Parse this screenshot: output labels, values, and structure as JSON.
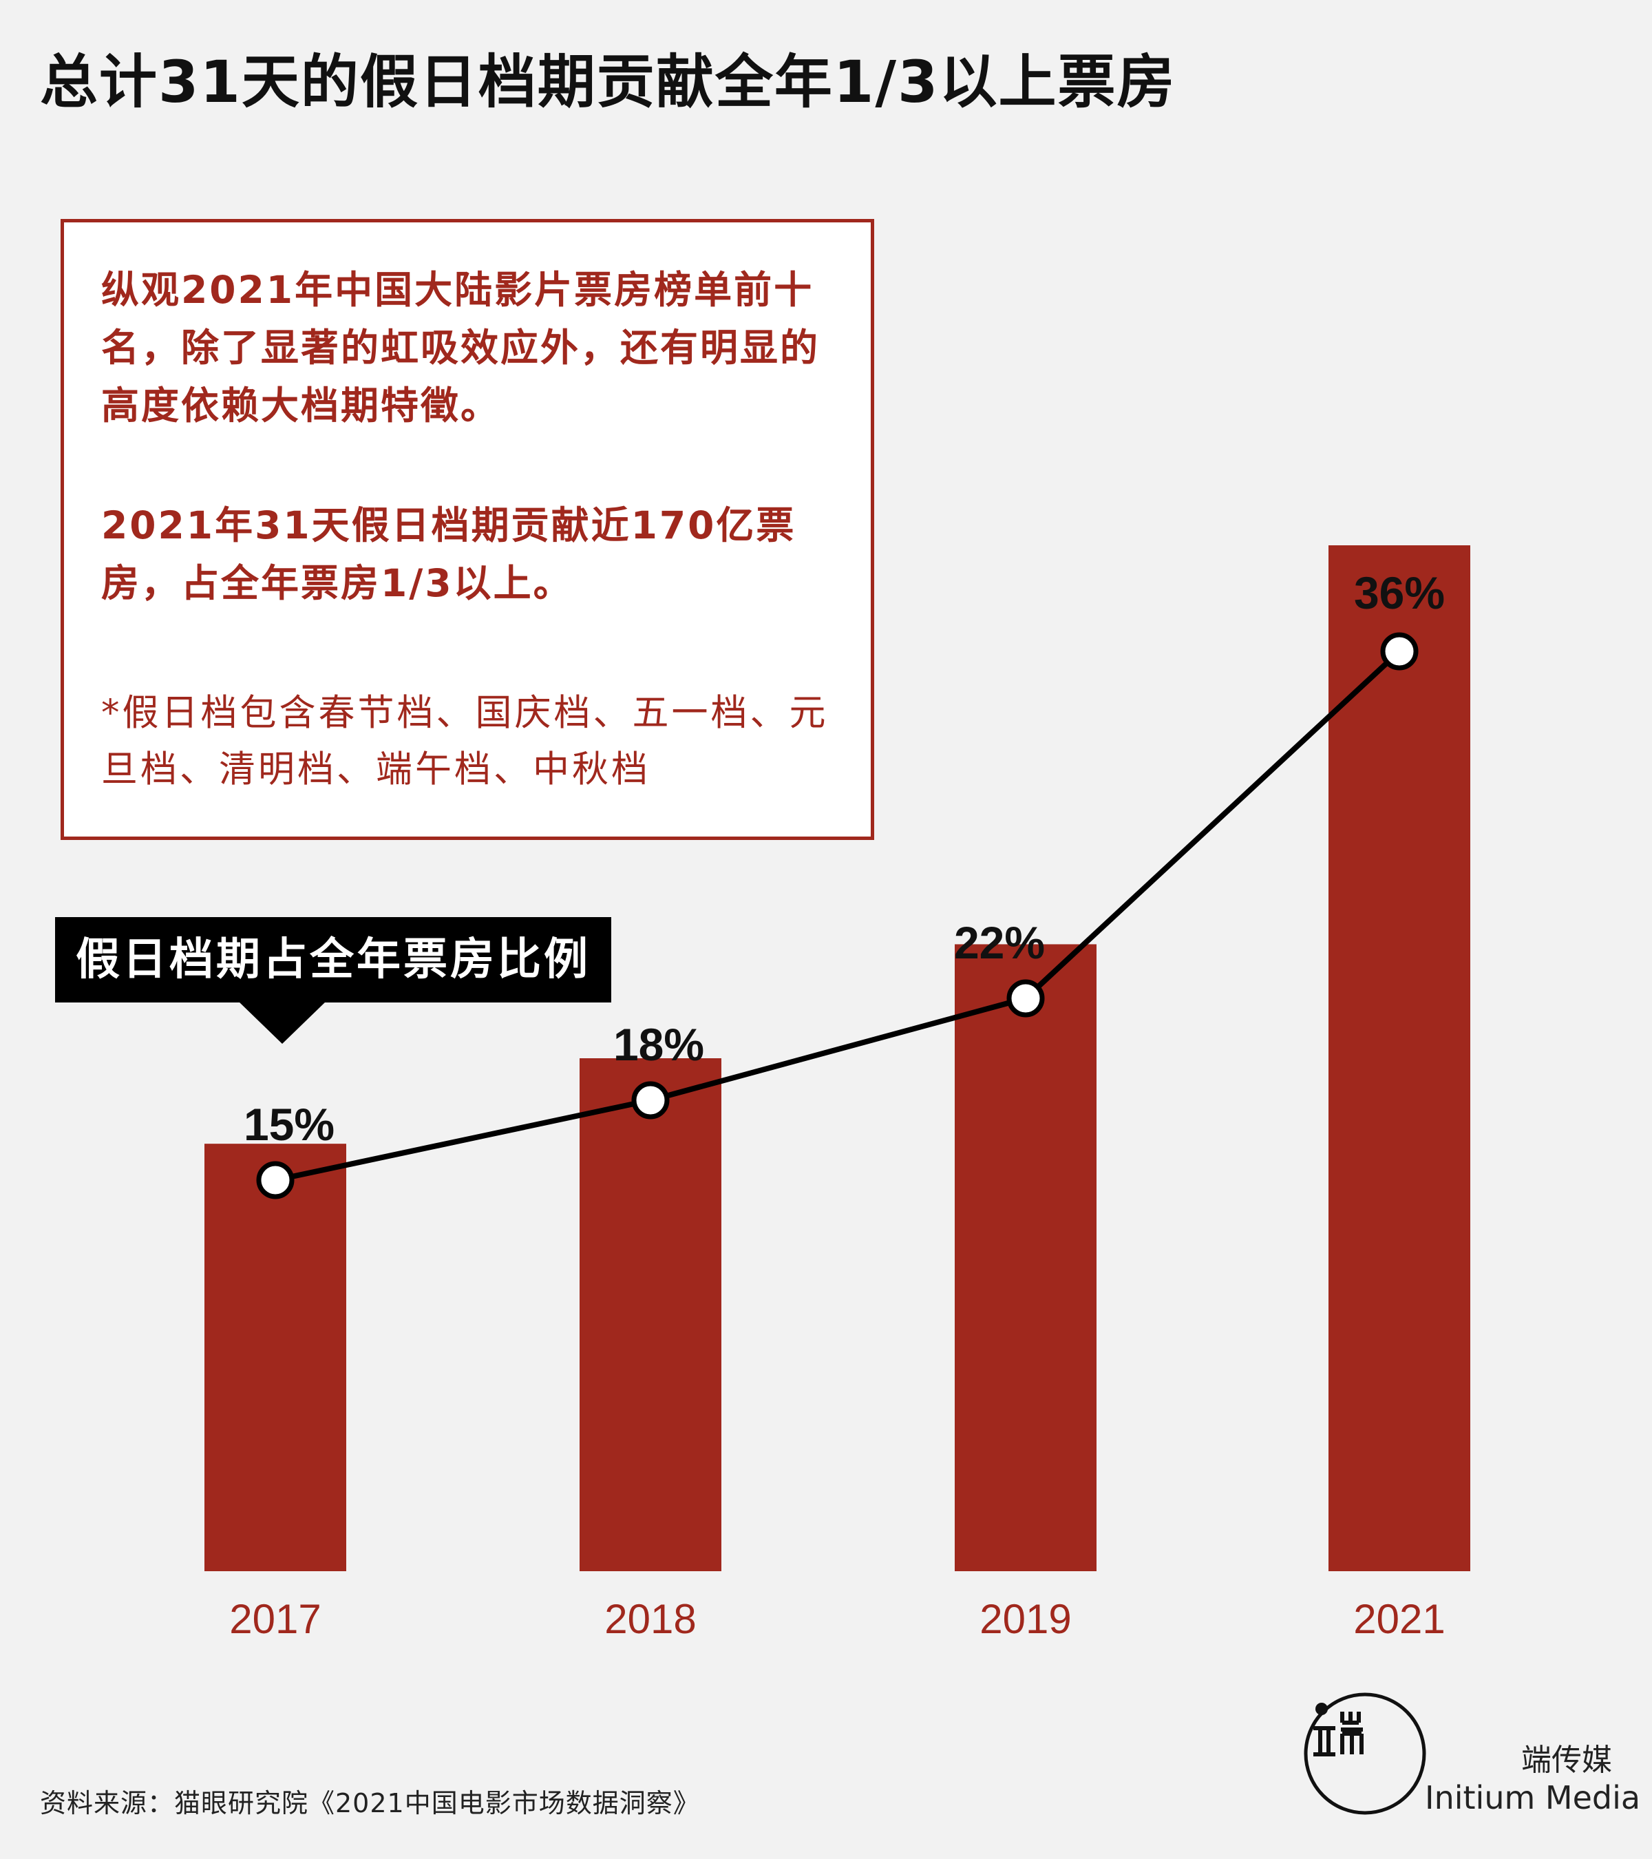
{
  "title": "总计31天的假日档期贡献全年1/3以上票房",
  "infobox": {
    "paragraph1": "纵观2021年中国大陆影片票房榜单前十名，除了显著的虹吸效应外，还有明显的高度依赖大档期特徵。",
    "paragraph2": "2021年31天假日档期贡献近170亿票房，占全年票房1/3以上。",
    "note": "*假日档包含春节档、国庆档、五一档、元旦档、清明档、端午档、中秋档"
  },
  "chart_label": "假日档期占全年票房比例",
  "chart_data": {
    "type": "bar",
    "title": "假日档期占全年票房比例",
    "categories": [
      "2017",
      "2018",
      "2019",
      "2021"
    ],
    "values": [
      15,
      18,
      22,
      36
    ],
    "data_labels": [
      "15%",
      "18%",
      "22%",
      "36%"
    ],
    "unit": "%",
    "overlay": "line",
    "ylim": [
      0,
      40
    ],
    "grid": false,
    "xlabel": "",
    "ylabel": "",
    "colors": {
      "bar": "#a0281d",
      "line": "#000000",
      "marker_fill": "#ffffff",
      "axis_label": "#a0281d"
    }
  },
  "source": "资料来源：猫眼研究院《2021中国电影市场数据洞察》",
  "brand": {
    "zh": "端传媒",
    "en": "Initium Media"
  }
}
